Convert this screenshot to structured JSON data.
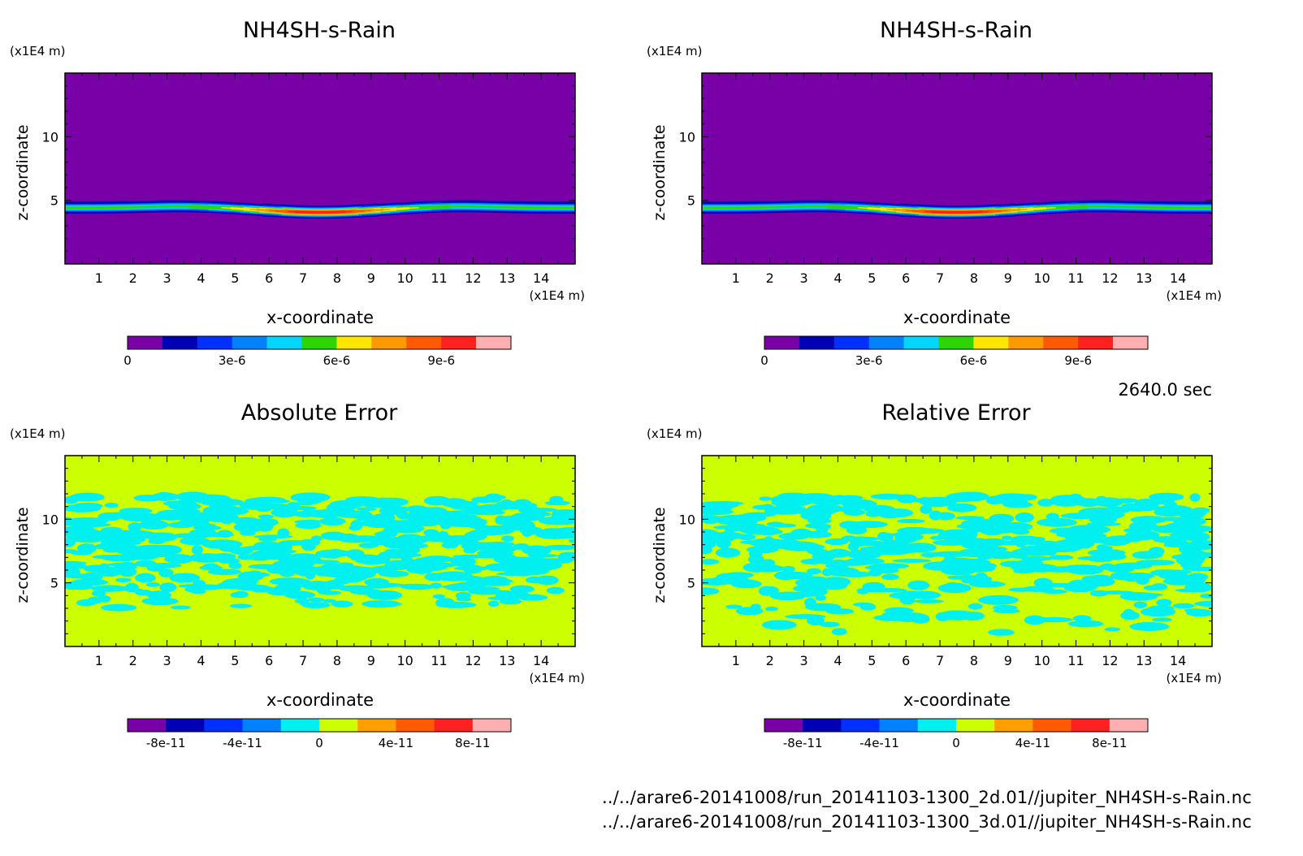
{
  "time_label": "2640.0 sec",
  "files": [
    "../../arare6-20141008/run_20141103-1300_2d.01//jupiter_NH4SH-s-Rain.nc",
    "../../arare6-20141008/run_20141103-1300_3d.01//jupiter_NH4SH-s-Rain.nc"
  ],
  "chart_data": [
    {
      "type": "heatmap",
      "title": "NH4SH-s-Rain",
      "xlabel": "x-coordinate",
      "ylabel": "z-coordinate",
      "x_unit": "(x1E4 m)",
      "y_unit": "(x1E4 m)",
      "xlim": [
        0,
        15
      ],
      "ylim": [
        0,
        15
      ],
      "x_ticks": [
        "1",
        "2",
        "3",
        "4",
        "5",
        "6",
        "7",
        "8",
        "9",
        "10",
        "11",
        "12",
        "13",
        "14"
      ],
      "y_ticks": [
        "5",
        "10"
      ],
      "colorbar": {
        "colors": [
          "#7800a6",
          "#0000b4",
          "#0030ff",
          "#0082ff",
          "#00d6ff",
          "#2dd600",
          "#ffe600",
          "#ff9900",
          "#ff5a00",
          "#ff2020",
          "#ffafaf"
        ],
        "tick_labels": [
          "0",
          "3e-6",
          "6e-6",
          "9e-6"
        ],
        "tick_values": [
          0,
          3e-06,
          6e-06,
          9e-06
        ],
        "range": [
          0,
          1.1e-05
        ]
      },
      "field": "layer",
      "background_color": "#7800a6",
      "layer": {
        "z_center_edge": 4.45,
        "z_center_mid": 4.1,
        "trough_x": 7.5,
        "peak_x_left": 3.5,
        "peak_x_right": 11.5,
        "max_value": 1e-05
      }
    },
    {
      "type": "heatmap",
      "title": "NH4SH-s-Rain",
      "xlabel": "x-coordinate",
      "ylabel": "z-coordinate",
      "x_unit": "(x1E4 m)",
      "y_unit": "(x1E4 m)",
      "xlim": [
        0,
        15
      ],
      "ylim": [
        0,
        15
      ],
      "x_ticks": [
        "1",
        "2",
        "3",
        "4",
        "5",
        "6",
        "7",
        "8",
        "9",
        "10",
        "11",
        "12",
        "13",
        "14"
      ],
      "y_ticks": [
        "5",
        "10"
      ],
      "colorbar": {
        "colors": [
          "#7800a6",
          "#0000b4",
          "#0030ff",
          "#0082ff",
          "#00d6ff",
          "#2dd600",
          "#ffe600",
          "#ff9900",
          "#ff5a00",
          "#ff2020",
          "#ffafaf"
        ],
        "tick_labels": [
          "0",
          "3e-6",
          "6e-6",
          "9e-6"
        ],
        "tick_values": [
          0,
          3e-06,
          6e-06,
          9e-06
        ],
        "range": [
          0,
          1.1e-05
        ]
      },
      "field": "layer",
      "background_color": "#7800a6",
      "layer": {
        "z_center_edge": 4.45,
        "z_center_mid": 4.1,
        "trough_x": 7.5,
        "peak_x_left": 3.5,
        "peak_x_right": 11.5,
        "max_value": 1e-05
      }
    },
    {
      "type": "heatmap",
      "title": "Absolute Error",
      "xlabel": "x-coordinate",
      "ylabel": "z-coordinate",
      "x_unit": "(x1E4 m)",
      "y_unit": "(x1E4 m)",
      "xlim": [
        0,
        15
      ],
      "ylim": [
        0,
        15
      ],
      "x_ticks": [
        "1",
        "2",
        "3",
        "4",
        "5",
        "6",
        "7",
        "8",
        "9",
        "10",
        "11",
        "12",
        "13",
        "14"
      ],
      "y_ticks": [
        "5",
        "10"
      ],
      "colorbar": {
        "colors": [
          "#7800a6",
          "#0000b4",
          "#0030ff",
          "#0082ff",
          "#00f0f0",
          "#ccff00",
          "#ffa000",
          "#ff5a00",
          "#ff2020",
          "#ffafaf"
        ],
        "tick_labels": [
          "-8e-11",
          "-4e-11",
          "0",
          "4e-11",
          "8e-11"
        ],
        "tick_values": [
          -8e-11,
          -4e-11,
          0,
          4e-11,
          8e-11
        ],
        "range": [
          -1e-10,
          1e-10
        ]
      },
      "field": "noise",
      "background_color": "#ccff00",
      "noise_color": "#00f0f0",
      "noise_zlim": [
        3.0,
        11.8
      ]
    },
    {
      "type": "heatmap",
      "title": "Relative Error",
      "xlabel": "x-coordinate",
      "ylabel": "z-coordinate",
      "x_unit": "(x1E4 m)",
      "y_unit": "(x1E4 m)",
      "xlim": [
        0,
        15
      ],
      "ylim": [
        0,
        15
      ],
      "x_ticks": [
        "1",
        "2",
        "3",
        "4",
        "5",
        "6",
        "7",
        "8",
        "9",
        "10",
        "11",
        "12",
        "13",
        "14"
      ],
      "y_ticks": [
        "5",
        "10"
      ],
      "colorbar": {
        "colors": [
          "#7800a6",
          "#0000b4",
          "#0030ff",
          "#0082ff",
          "#00f0f0",
          "#ccff00",
          "#ffa000",
          "#ff5a00",
          "#ff2020",
          "#ffafaf"
        ],
        "tick_labels": [
          "-8e-11",
          "-4e-11",
          "0",
          "4e-11",
          "8e-11"
        ],
        "tick_values": [
          -8e-11,
          -4e-11,
          0,
          4e-11,
          8e-11
        ],
        "range": [
          -1e-10,
          1e-10
        ]
      },
      "field": "noise",
      "background_color": "#ccff00",
      "noise_color": "#00f0f0",
      "noise_zlim": [
        1.0,
        11.8
      ]
    }
  ]
}
